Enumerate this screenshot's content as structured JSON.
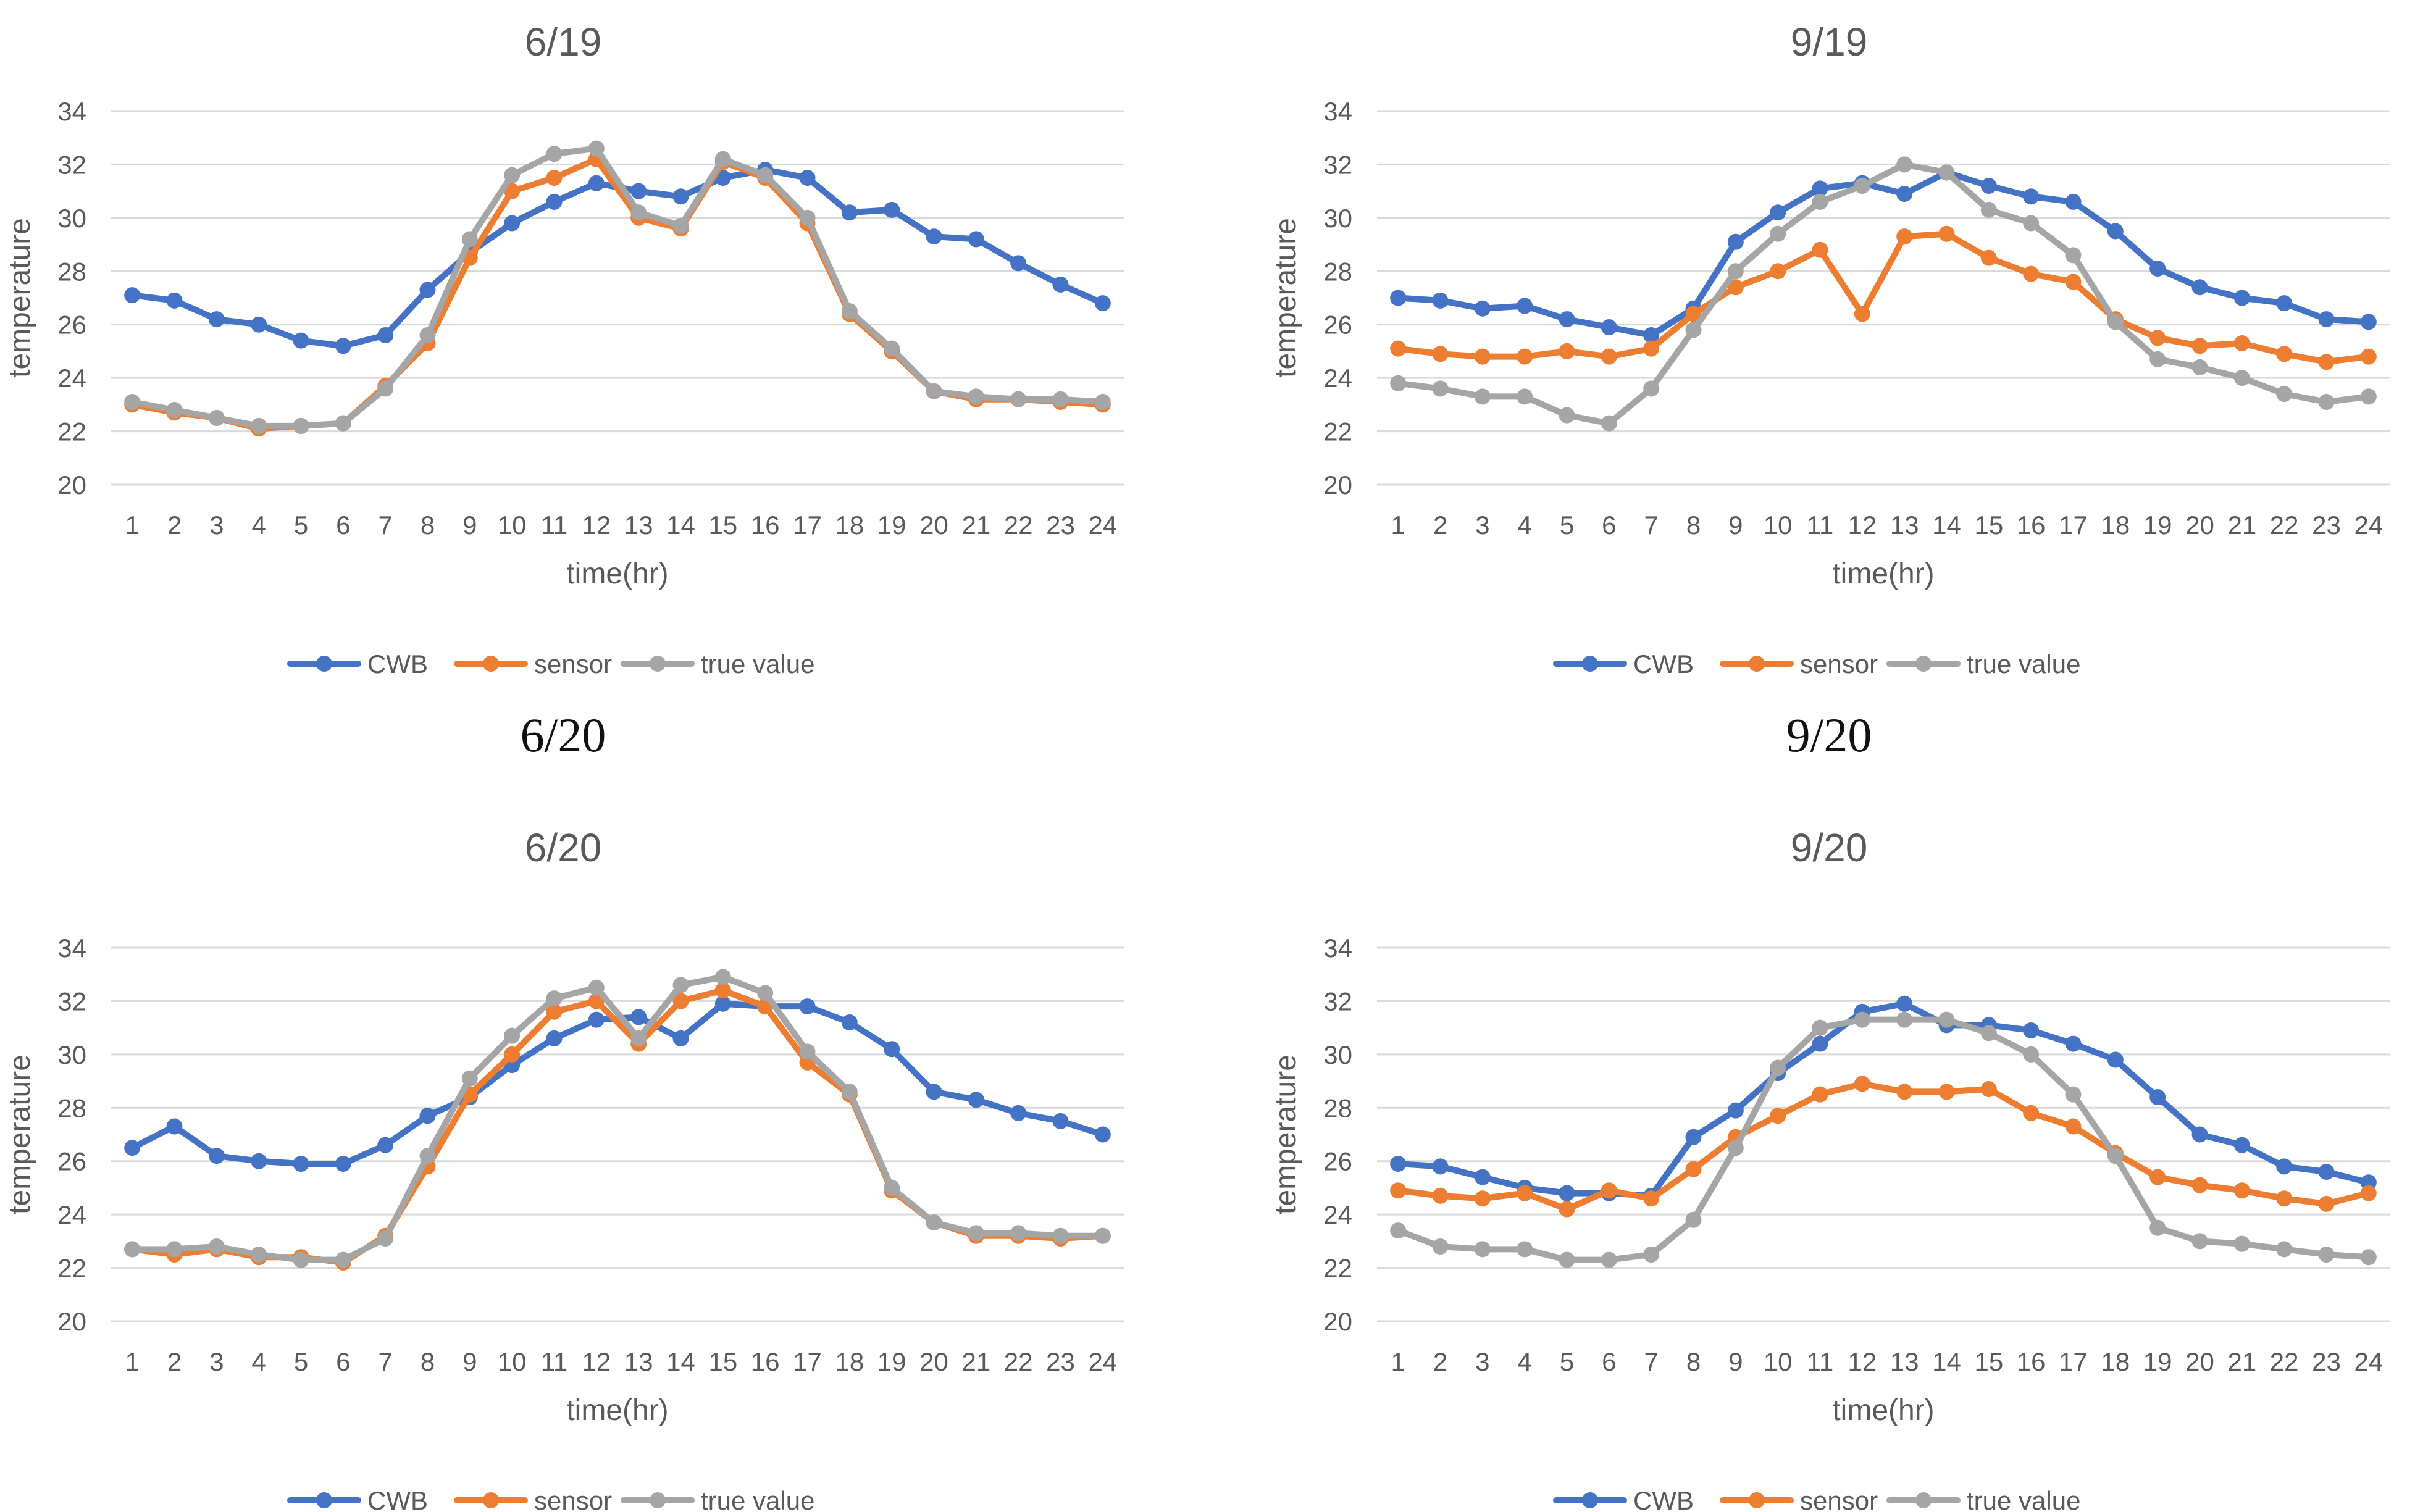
{
  "colors": {
    "cwb": "#4472c4",
    "sensor": "#ed7d31",
    "true_value": "#a5a5a5",
    "grid": "#d9d9d9",
    "text": "#595959"
  },
  "chart_data": [
    {
      "type": "line",
      "title": "6/19",
      "caption": "",
      "xlabel": "time(hr)",
      "ylabel": "temperature",
      "ylim": [
        20,
        34
      ],
      "yticks": [
        20,
        22,
        24,
        26,
        28,
        30,
        32,
        34
      ],
      "grid": true,
      "legend": "bottom-center",
      "categories": [
        "1",
        "2",
        "3",
        "4",
        "5",
        "6",
        "7",
        "8",
        "9",
        "10",
        "11",
        "12",
        "13",
        "14",
        "15",
        "16",
        "17",
        "18",
        "19",
        "20",
        "21",
        "22",
        "23",
        "24"
      ],
      "series": [
        {
          "name": "CWB",
          "values": [
            27.1,
            26.9,
            26.2,
            26.0,
            25.4,
            25.2,
            25.6,
            27.3,
            28.7,
            29.8,
            30.6,
            31.3,
            31.0,
            30.8,
            31.5,
            31.8,
            31.5,
            30.2,
            30.3,
            29.3,
            29.2,
            28.3,
            27.5,
            26.8
          ]
        },
        {
          "name": "sensor",
          "values": [
            23.0,
            22.7,
            22.5,
            22.1,
            22.2,
            22.3,
            23.7,
            25.3,
            28.5,
            31.0,
            31.5,
            32.2,
            30.0,
            29.6,
            32.1,
            31.5,
            29.8,
            26.4,
            25.0,
            23.5,
            23.2,
            23.2,
            23.1,
            23.0
          ]
        },
        {
          "name": "true value",
          "values": [
            23.1,
            22.8,
            22.5,
            22.2,
            22.2,
            22.3,
            23.6,
            25.6,
            29.2,
            31.6,
            32.4,
            32.6,
            30.2,
            29.7,
            32.2,
            31.6,
            30.0,
            26.5,
            25.1,
            23.5,
            23.3,
            23.2,
            23.2,
            23.1
          ]
        }
      ]
    },
    {
      "type": "line",
      "title": "9/19",
      "caption": "",
      "xlabel": "time(hr)",
      "ylabel": "temperature",
      "ylim": [
        20,
        34
      ],
      "yticks": [
        20,
        22,
        24,
        26,
        28,
        30,
        32,
        34
      ],
      "grid": true,
      "legend": "bottom-center",
      "categories": [
        "1",
        "2",
        "3",
        "4",
        "5",
        "6",
        "7",
        "8",
        "9",
        "10",
        "11",
        "12",
        "13",
        "14",
        "15",
        "16",
        "17",
        "18",
        "19",
        "20",
        "21",
        "22",
        "23",
        "24"
      ],
      "series": [
        {
          "name": "CWB",
          "values": [
            27.0,
            26.9,
            26.6,
            26.7,
            26.2,
            25.9,
            25.6,
            26.6,
            29.1,
            30.2,
            31.1,
            31.3,
            30.9,
            31.7,
            31.2,
            30.8,
            30.6,
            29.5,
            28.1,
            27.4,
            27.0,
            26.8,
            26.2,
            26.1
          ]
        },
        {
          "name": "sensor",
          "values": [
            25.1,
            24.9,
            24.8,
            24.8,
            25.0,
            24.8,
            25.1,
            26.4,
            27.4,
            28.0,
            28.8,
            26.4,
            29.3,
            29.4,
            28.5,
            27.9,
            27.6,
            26.2,
            25.5,
            25.2,
            25.3,
            24.9,
            24.6,
            24.8
          ]
        },
        {
          "name": "true value",
          "values": [
            23.8,
            23.6,
            23.3,
            23.3,
            22.6,
            22.3,
            23.6,
            25.8,
            28.0,
            29.4,
            30.6,
            31.2,
            32.0,
            31.7,
            30.3,
            29.8,
            28.6,
            26.1,
            24.7,
            24.4,
            24.0,
            23.4,
            23.1,
            23.3
          ]
        }
      ]
    },
    {
      "type": "line",
      "title": "6/20",
      "caption": "6/20",
      "xlabel": "time(hr)",
      "ylabel": "temperature",
      "ylim": [
        20,
        34
      ],
      "yticks": [
        20,
        22,
        24,
        26,
        28,
        30,
        32,
        34
      ],
      "grid": true,
      "legend": "bottom-center",
      "categories": [
        "1",
        "2",
        "3",
        "4",
        "5",
        "6",
        "7",
        "8",
        "9",
        "10",
        "11",
        "12",
        "13",
        "14",
        "15",
        "16",
        "17",
        "18",
        "19",
        "20",
        "21",
        "22",
        "23",
        "24"
      ],
      "series": [
        {
          "name": "CWB",
          "values": [
            26.5,
            27.3,
            26.2,
            26.0,
            25.9,
            25.9,
            26.6,
            27.7,
            28.4,
            29.6,
            30.6,
            31.3,
            31.4,
            30.6,
            31.9,
            31.8,
            31.8,
            31.2,
            30.2,
            28.6,
            28.3,
            27.8,
            27.5,
            27.0
          ]
        },
        {
          "name": "sensor",
          "values": [
            22.7,
            22.5,
            22.7,
            22.4,
            22.4,
            22.2,
            23.2,
            25.8,
            28.5,
            30.0,
            31.6,
            32.0,
            30.4,
            32.0,
            32.4,
            31.8,
            29.7,
            28.5,
            24.9,
            23.7,
            23.2,
            23.2,
            23.1,
            23.2
          ]
        },
        {
          "name": "true value",
          "values": [
            22.7,
            22.7,
            22.8,
            22.5,
            22.3,
            22.3,
            23.1,
            26.2,
            29.1,
            30.7,
            32.1,
            32.5,
            30.6,
            32.6,
            32.9,
            32.3,
            30.1,
            28.6,
            25.0,
            23.7,
            23.3,
            23.3,
            23.2,
            23.2
          ]
        }
      ]
    },
    {
      "type": "line",
      "title": "9/20",
      "caption": "9/20",
      "xlabel": "time(hr)",
      "ylabel": "temperature",
      "ylim": [
        20,
        34
      ],
      "yticks": [
        20,
        22,
        24,
        26,
        28,
        30,
        32,
        34
      ],
      "grid": true,
      "legend": "bottom-center",
      "categories": [
        "1",
        "2",
        "3",
        "4",
        "5",
        "6",
        "7",
        "8",
        "9",
        "10",
        "11",
        "12",
        "13",
        "14",
        "15",
        "16",
        "17",
        "18",
        "19",
        "20",
        "21",
        "22",
        "23",
        "24"
      ],
      "series": [
        {
          "name": "CWB",
          "values": [
            25.9,
            25.8,
            25.4,
            25.0,
            24.8,
            24.8,
            24.7,
            26.9,
            27.9,
            29.3,
            30.4,
            31.6,
            31.9,
            31.1,
            31.1,
            30.9,
            30.4,
            29.8,
            28.4,
            27.0,
            26.6,
            25.8,
            25.6,
            25.2
          ]
        },
        {
          "name": "sensor",
          "values": [
            24.9,
            24.7,
            24.6,
            24.8,
            24.2,
            24.9,
            24.6,
            25.7,
            26.9,
            27.7,
            28.5,
            28.9,
            28.6,
            28.6,
            28.7,
            27.8,
            27.3,
            26.3,
            25.4,
            25.1,
            24.9,
            24.6,
            24.4,
            24.8
          ]
        },
        {
          "name": "true value",
          "values": [
            23.4,
            22.8,
            22.7,
            22.7,
            22.3,
            22.3,
            22.5,
            23.8,
            26.5,
            29.5,
            31.0,
            31.3,
            31.3,
            31.3,
            30.8,
            30.0,
            28.5,
            26.2,
            23.5,
            23.0,
            22.9,
            22.7,
            22.5,
            22.4
          ]
        }
      ]
    }
  ]
}
